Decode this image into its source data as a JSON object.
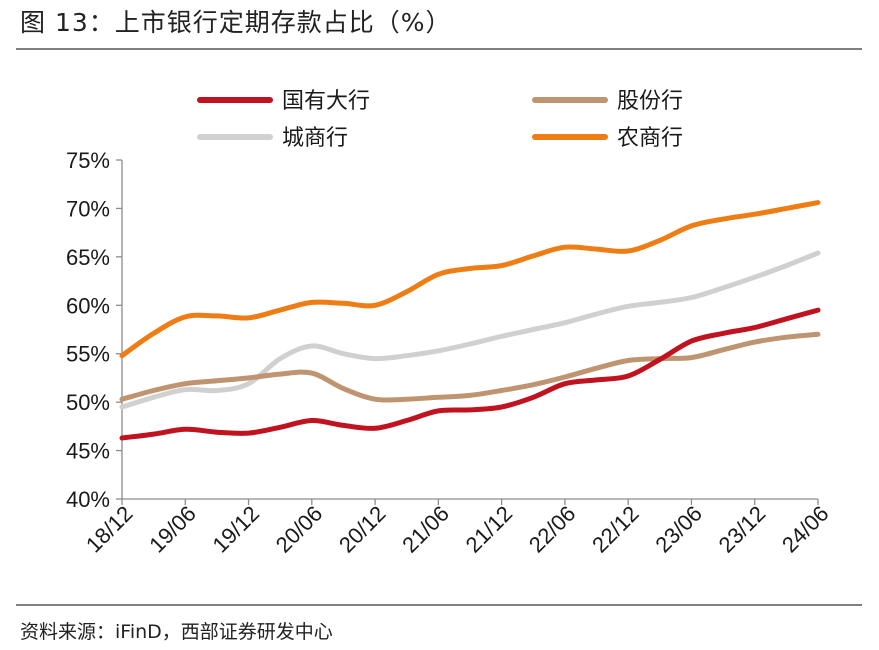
{
  "header": {
    "title": "图 13：上市银行定期存款占比（%）"
  },
  "footer": {
    "source": "资料来源：iFinD，西部证券研发中心"
  },
  "chart_data": {
    "type": "line",
    "title": "上市银行定期存款占比（%）",
    "xlabel": "",
    "ylabel": "",
    "x": [
      "18/12",
      "19/03",
      "19/06",
      "19/09",
      "19/12",
      "20/03",
      "20/06",
      "20/09",
      "20/12",
      "21/03",
      "21/06",
      "21/09",
      "21/12",
      "22/03",
      "22/06",
      "22/09",
      "22/12",
      "23/03",
      "23/06",
      "23/09",
      "23/12",
      "24/03",
      "24/06"
    ],
    "x_tick_labels": [
      "18/12",
      "19/06",
      "19/12",
      "20/06",
      "20/12",
      "21/06",
      "21/12",
      "22/06",
      "22/12",
      "23/06",
      "23/12",
      "24/06"
    ],
    "ylim": [
      40,
      75
    ],
    "y_ticks": [
      40,
      45,
      50,
      55,
      60,
      65,
      70,
      75
    ],
    "y_tick_labels": [
      "40%",
      "45%",
      "50%",
      "55%",
      "60%",
      "65%",
      "70%",
      "75%"
    ],
    "legend_position": "top",
    "series": [
      {
        "name": "国有大行",
        "color": "#c0131f",
        "values": [
          46.3,
          46.7,
          47.2,
          46.9,
          46.8,
          47.4,
          48.1,
          47.6,
          47.3,
          48.1,
          49.1,
          49.2,
          49.5,
          50.5,
          51.9,
          52.3,
          52.7,
          54.4,
          56.3,
          57.1,
          57.7,
          58.6,
          59.5
        ]
      },
      {
        "name": "股份行",
        "color": "#bf9471",
        "values": [
          50.3,
          51.2,
          51.9,
          52.2,
          52.5,
          52.9,
          53.0,
          51.4,
          50.3,
          50.3,
          50.5,
          50.7,
          51.2,
          51.8,
          52.6,
          53.5,
          54.3,
          54.5,
          54.6,
          55.4,
          56.2,
          56.7,
          57.0
        ]
      },
      {
        "name": "城商行",
        "color": "#d0d0d0",
        "values": [
          49.5,
          50.5,
          51.3,
          51.2,
          51.9,
          54.5,
          55.8,
          55.0,
          54.5,
          54.8,
          55.3,
          56.0,
          56.8,
          57.5,
          58.2,
          59.1,
          59.9,
          60.3,
          60.8,
          61.8,
          62.9,
          64.1,
          65.4
        ]
      },
      {
        "name": "农商行",
        "color": "#ed7d14",
        "values": [
          54.8,
          57.1,
          58.8,
          58.9,
          58.7,
          59.5,
          60.3,
          60.2,
          60.0,
          61.4,
          63.2,
          63.8,
          64.1,
          65.1,
          66.0,
          65.8,
          65.6,
          66.7,
          68.2,
          68.9,
          69.4,
          70.0,
          70.6
        ]
      }
    ]
  }
}
